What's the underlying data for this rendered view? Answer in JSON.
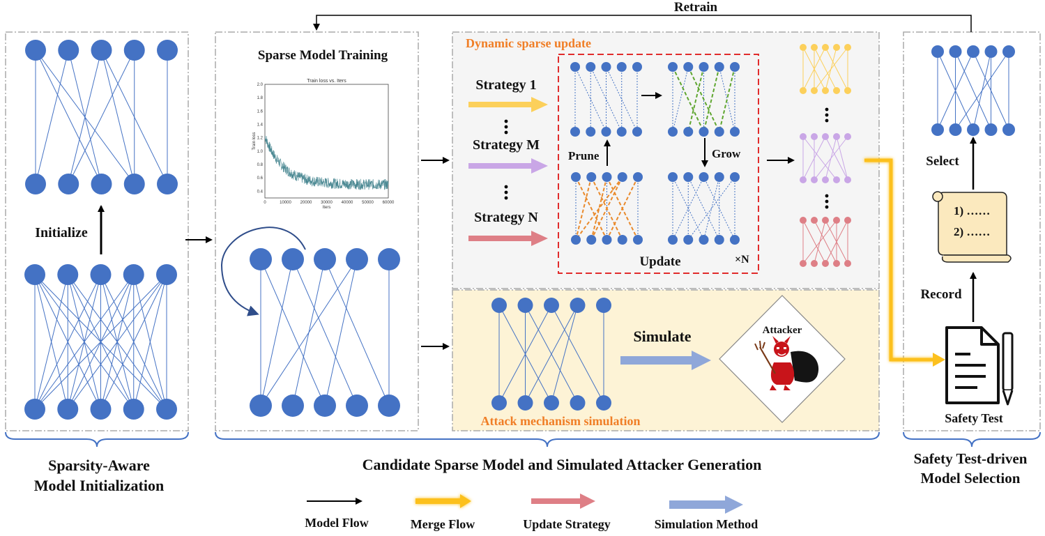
{
  "labels": {
    "retrain": "Retrain",
    "sparse_model_training": "Sparse Model Training",
    "dynamic_sparse_update": "Dynamic sparse update",
    "strategy_1": "Strategy 1",
    "strategy_m": "Strategy M",
    "strategy_n": "Strategy N",
    "prune": "Prune",
    "grow": "Grow",
    "update": "Update",
    "times_n": "×N",
    "initialize": "Initialize",
    "simulate": "Simulate",
    "attacker": "Attacker",
    "attack_mechanism_simulation": "Attack mechanism simulation",
    "select": "Select",
    "record": "Record",
    "safety_test": "Safety Test",
    "scroll_line_1": "1) ……",
    "scroll_line_2": "2) ……",
    "section_1_line1": "Sparsity-Aware",
    "section_1_line2": "Model Initialization",
    "section_2": "Candidate Sparse Model and Simulated Attacker Generation",
    "section_3_line1": "Safety Test-driven",
    "section_3_line2": "Model Selection"
  },
  "loss_plot": {
    "title": "Train loss  vs. Iters",
    "ylabel": "Train loss",
    "xlabel": "Iters",
    "y_ticks": [
      "2.0",
      "1.8",
      "1.6",
      "1.4",
      "1.2",
      "1.0",
      "0.8",
      "0.6",
      "0.4"
    ],
    "x_ticks": [
      "0",
      "10000",
      "20000",
      "30000",
      "40000",
      "50000",
      "60000"
    ]
  },
  "legend": [
    {
      "name": "legend-model-flow",
      "label": "Model Flow",
      "kind": "black"
    },
    {
      "name": "legend-merge-flow",
      "label": "Merge Flow",
      "kind": "yellow"
    },
    {
      "name": "legend-update-strategy",
      "label": "Update Strategy",
      "kind": "red"
    },
    {
      "name": "legend-simulation-method",
      "label": "Simulation  Method",
      "kind": "blue"
    }
  ],
  "colors": {
    "node_blue": "#4472c4",
    "strategy_1": "#fcd05b",
    "strategy_m": "#c9a6e6",
    "strategy_n": "#de7f86",
    "simulate": "#8fa7d9",
    "merge": "#fcc01e",
    "update_box": "#e12b2b",
    "accent_orange": "#f07e26",
    "attack_bg": "#fdf3d6",
    "dynamic_bg": "#f5f5f5"
  }
}
